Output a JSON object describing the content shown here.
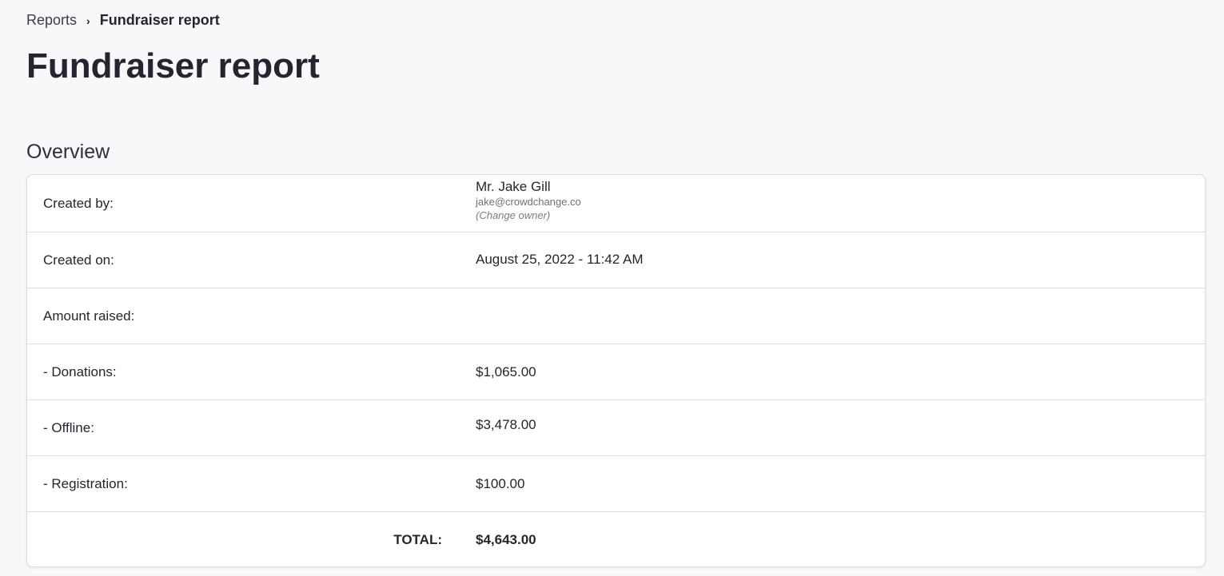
{
  "breadcrumb": {
    "parent": "Reports",
    "separator": "›",
    "current": "Fundraiser report"
  },
  "page_title": "Fundraiser report",
  "section_title": "Overview",
  "overview": {
    "created_by": {
      "label": "Created by:",
      "name": "Mr. Jake Gill",
      "email": "jake@crowdchange.co",
      "change_owner": "(Change owner)"
    },
    "created_on": {
      "label": "Created on:",
      "value": "August 25, 2022 - 11:42 AM"
    },
    "amount_raised": {
      "label": "Amount raised:"
    },
    "donations": {
      "label": "- Donations:",
      "value": "$1,065.00"
    },
    "offline": {
      "label": "- Offline:",
      "value": "$3,478.00"
    },
    "registration": {
      "label": "- Registration:",
      "value": "$100.00"
    },
    "total": {
      "label": "TOTAL:",
      "value": "$4,643.00"
    }
  }
}
